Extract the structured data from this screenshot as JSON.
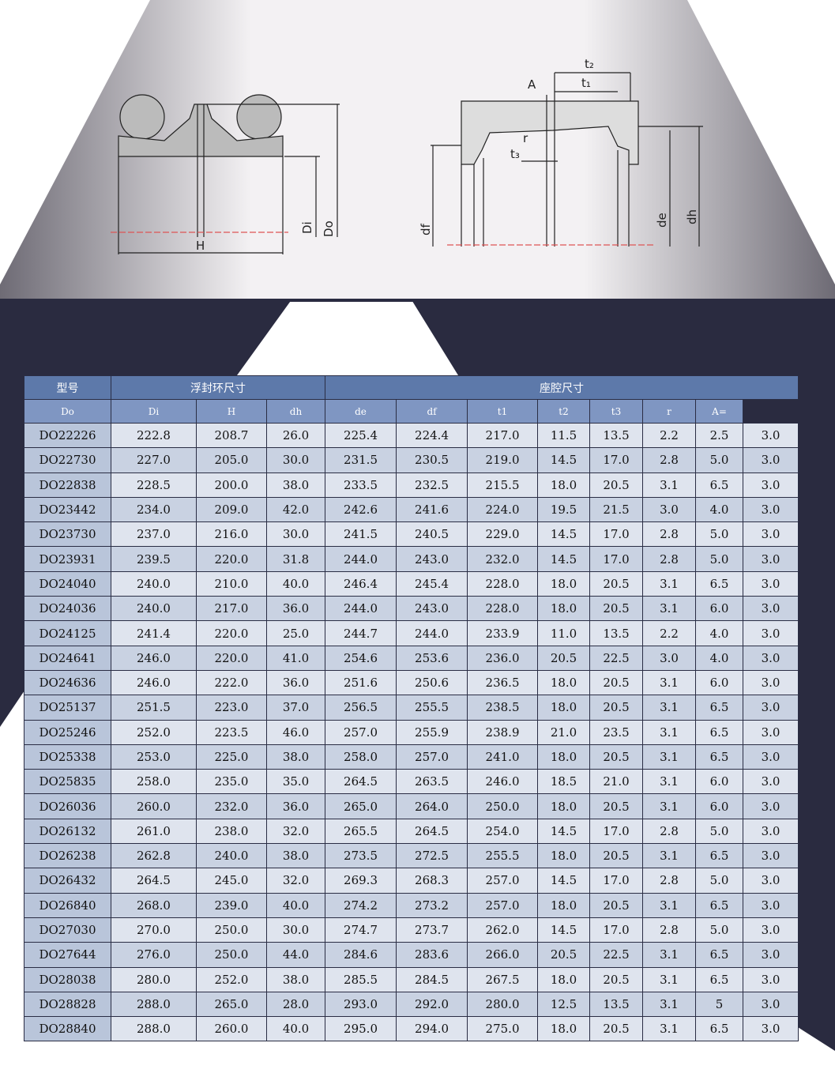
{
  "diagram_left": {
    "labels": {
      "h": "H",
      "di": "Di",
      "do": "Do"
    }
  },
  "diagram_right": {
    "labels": {
      "t2": "t₂",
      "t1": "t₁",
      "a": "A",
      "r": "r",
      "t3": "t₃",
      "df": "df",
      "de": "de",
      "dh": "dh"
    }
  },
  "table": {
    "header": {
      "model": "型号",
      "group1": "浮封环尺寸",
      "group2": "座腔尺寸",
      "columns": [
        "Do",
        "Di",
        "H",
        "dh",
        "de",
        "df",
        "t1",
        "t2",
        "t3",
        "r",
        "A="
      ]
    },
    "rows": [
      [
        "DO22226",
        "222.8",
        "208.7",
        "26.0",
        "225.4",
        "224.4",
        "217.0",
        "11.5",
        "13.5",
        "2.2",
        "2.5",
        "3.0"
      ],
      [
        "DO22730",
        "227.0",
        "205.0",
        "30.0",
        "231.5",
        "230.5",
        "219.0",
        "14.5",
        "17.0",
        "2.8",
        "5.0",
        "3.0"
      ],
      [
        "DO22838",
        "228.5",
        "200.0",
        "38.0",
        "233.5",
        "232.5",
        "215.5",
        "18.0",
        "20.5",
        "3.1",
        "6.5",
        "3.0"
      ],
      [
        "DO23442",
        "234.0",
        "209.0",
        "42.0",
        "242.6",
        "241.6",
        "224.0",
        "19.5",
        "21.5",
        "3.0",
        "4.0",
        "3.0"
      ],
      [
        "DO23730",
        "237.0",
        "216.0",
        "30.0",
        "241.5",
        "240.5",
        "229.0",
        "14.5",
        "17.0",
        "2.8",
        "5.0",
        "3.0"
      ],
      [
        "DO23931",
        "239.5",
        "220.0",
        "31.8",
        "244.0",
        "243.0",
        "232.0",
        "14.5",
        "17.0",
        "2.8",
        "5.0",
        "3.0"
      ],
      [
        "DO24040",
        "240.0",
        "210.0",
        "40.0",
        "246.4",
        "245.4",
        "228.0",
        "18.0",
        "20.5",
        "3.1",
        "6.5",
        "3.0"
      ],
      [
        "DO24036",
        "240.0",
        "217.0",
        "36.0",
        "244.0",
        "243.0",
        "228.0",
        "18.0",
        "20.5",
        "3.1",
        "6.0",
        "3.0"
      ],
      [
        "DO24125",
        "241.4",
        "220.0",
        "25.0",
        "244.7",
        "244.0",
        "233.9",
        "11.0",
        "13.5",
        "2.2",
        "4.0",
        "3.0"
      ],
      [
        "DO24641",
        "246.0",
        "220.0",
        "41.0",
        "254.6",
        "253.6",
        "236.0",
        "20.5",
        "22.5",
        "3.0",
        "4.0",
        "3.0"
      ],
      [
        "DO24636",
        "246.0",
        "222.0",
        "36.0",
        "251.6",
        "250.6",
        "236.5",
        "18.0",
        "20.5",
        "3.1",
        "6.0",
        "3.0"
      ],
      [
        "DO25137",
        "251.5",
        "223.0",
        "37.0",
        "256.5",
        "255.5",
        "238.5",
        "18.0",
        "20.5",
        "3.1",
        "6.5",
        "3.0"
      ],
      [
        "DO25246",
        "252.0",
        "223.5",
        "46.0",
        "257.0",
        "255.9",
        "238.9",
        "21.0",
        "23.5",
        "3.1",
        "6.5",
        "3.0"
      ],
      [
        "DO25338",
        "253.0",
        "225.0",
        "38.0",
        "258.0",
        "257.0",
        "241.0",
        "18.0",
        "20.5",
        "3.1",
        "6.5",
        "3.0"
      ],
      [
        "DO25835",
        "258.0",
        "235.0",
        "35.0",
        "264.5",
        "263.5",
        "246.0",
        "18.5",
        "21.0",
        "3.1",
        "6.0",
        "3.0"
      ],
      [
        "DO26036",
        "260.0",
        "232.0",
        "36.0",
        "265.0",
        "264.0",
        "250.0",
        "18.0",
        "20.5",
        "3.1",
        "6.0",
        "3.0"
      ],
      [
        "DO26132",
        "261.0",
        "238.0",
        "32.0",
        "265.5",
        "264.5",
        "254.0",
        "14.5",
        "17.0",
        "2.8",
        "5.0",
        "3.0"
      ],
      [
        "DO26238",
        "262.8",
        "240.0",
        "38.0",
        "273.5",
        "272.5",
        "255.5",
        "18.0",
        "20.5",
        "3.1",
        "6.5",
        "3.0"
      ],
      [
        "DO26432",
        "264.5",
        "245.0",
        "32.0",
        "269.3",
        "268.3",
        "257.0",
        "14.5",
        "17.0",
        "2.8",
        "5.0",
        "3.0"
      ],
      [
        "DO26840",
        "268.0",
        "239.0",
        "40.0",
        "274.2",
        "273.2",
        "257.0",
        "18.0",
        "20.5",
        "3.1",
        "6.5",
        "3.0"
      ],
      [
        "DO27030",
        "270.0",
        "250.0",
        "30.0",
        "274.7",
        "273.7",
        "262.0",
        "14.5",
        "17.0",
        "2.8",
        "5.0",
        "3.0"
      ],
      [
        "DO27644",
        "276.0",
        "250.0",
        "44.0",
        "284.6",
        "283.6",
        "266.0",
        "20.5",
        "22.5",
        "3.1",
        "6.5",
        "3.0"
      ],
      [
        "DO28038",
        "280.0",
        "252.0",
        "38.0",
        "285.5",
        "284.5",
        "267.5",
        "18.0",
        "20.5",
        "3.1",
        "6.5",
        "3.0"
      ],
      [
        "DO28828",
        "288.0",
        "265.0",
        "28.0",
        "293.0",
        "292.0",
        "280.0",
        "12.5",
        "13.5",
        "3.1",
        "5",
        "3.0"
      ],
      [
        "DO28840",
        "288.0",
        "260.0",
        "40.0",
        "295.0",
        "294.0",
        "275.0",
        "18.0",
        "20.5",
        "3.1",
        "6.5",
        "3.0"
      ]
    ]
  }
}
